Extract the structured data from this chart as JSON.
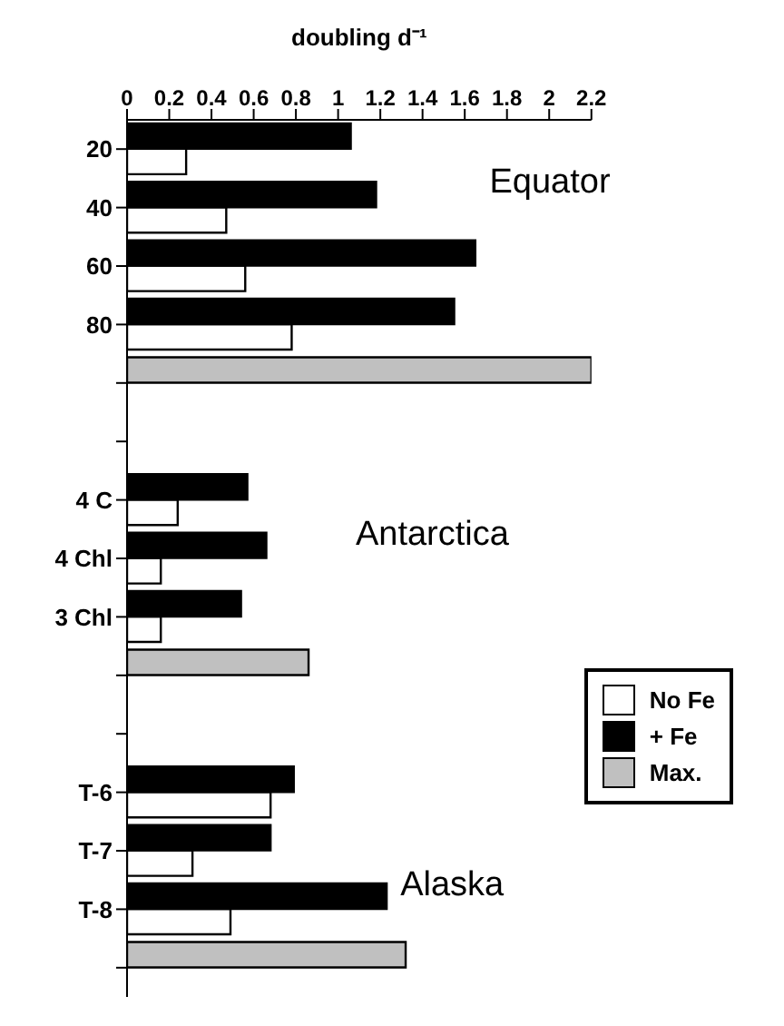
{
  "chart_data": {
    "type": "bar",
    "orientation": "horizontal",
    "xlabel": "doubling d⁻¹",
    "categories": [
      "20",
      "40",
      "60",
      "80",
      null,
      null,
      "4 C",
      "4 Chl",
      "3 Chl",
      null,
      null,
      "T-6",
      "T-7",
      "T-8",
      null
    ],
    "series": [
      {
        "name": "No Fe",
        "color": "#ffffff",
        "values": [
          0.28,
          0.47,
          0.56,
          0.78,
          null,
          null,
          0.24,
          0.16,
          0.16,
          null,
          null,
          0.68,
          0.31,
          0.49,
          null
        ]
      },
      {
        "name": "+ Fe",
        "color": "#000000",
        "values": [
          1.06,
          1.18,
          1.65,
          1.55,
          null,
          null,
          0.57,
          0.66,
          0.54,
          null,
          null,
          0.79,
          0.68,
          1.23,
          null
        ]
      },
      {
        "name": "Max.",
        "color": "#c0c0c0",
        "values": [
          null,
          null,
          null,
          null,
          2.2,
          null,
          null,
          null,
          null,
          0.86,
          null,
          null,
          null,
          null,
          1.32
        ]
      }
    ],
    "xlim": [
      0,
      2.2
    ],
    "xticks": [
      0,
      0.2,
      0.4,
      0.6,
      0.8,
      1,
      1.2,
      1.4,
      1.6,
      1.8,
      2,
      2.2
    ],
    "annotations": [
      "Equator",
      "Antarctica",
      "Alaska"
    ],
    "legend": "right",
    "grid": false
  }
}
